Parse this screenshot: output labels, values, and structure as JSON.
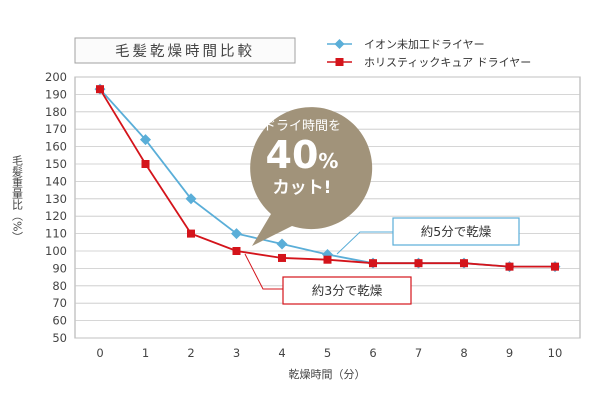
{
  "chart_data": {
    "type": "line",
    "title": "毛髪乾燥時間比較",
    "xlabel": "乾燥時間（分）",
    "ylabel": "毛髪重量比（%）",
    "x": [
      0,
      1,
      2,
      3,
      4,
      5,
      6,
      7,
      8,
      9,
      10
    ],
    "xlim": [
      0,
      10
    ],
    "ylim": [
      50,
      200
    ],
    "yticks": [
      50,
      60,
      70,
      80,
      90,
      100,
      110,
      120,
      130,
      140,
      150,
      160,
      170,
      180,
      190,
      200
    ],
    "grid": true,
    "legend_position": "top-right",
    "series": [
      {
        "name": "イオン未加工ドライヤー",
        "marker": "diamond",
        "color": "#5aaed8",
        "values": [
          193,
          164,
          130,
          110,
          104,
          98,
          93,
          93,
          93,
          91,
          91
        ]
      },
      {
        "name": "ホリスティックキュア ドライヤー",
        "marker": "square",
        "color": "#d4141b",
        "values": [
          193,
          150,
          110,
          100,
          96,
          95,
          93,
          93,
          93,
          91,
          91
        ]
      }
    ],
    "annotations": {
      "badge_line1": "ドライ時間を",
      "badge_main": "40",
      "badge_percent": "%",
      "badge_line3": "カット!",
      "badge_color": "#a1937a",
      "callout_blue": "約5分で乾燥",
      "callout_red": "約3分で乾燥"
    }
  }
}
